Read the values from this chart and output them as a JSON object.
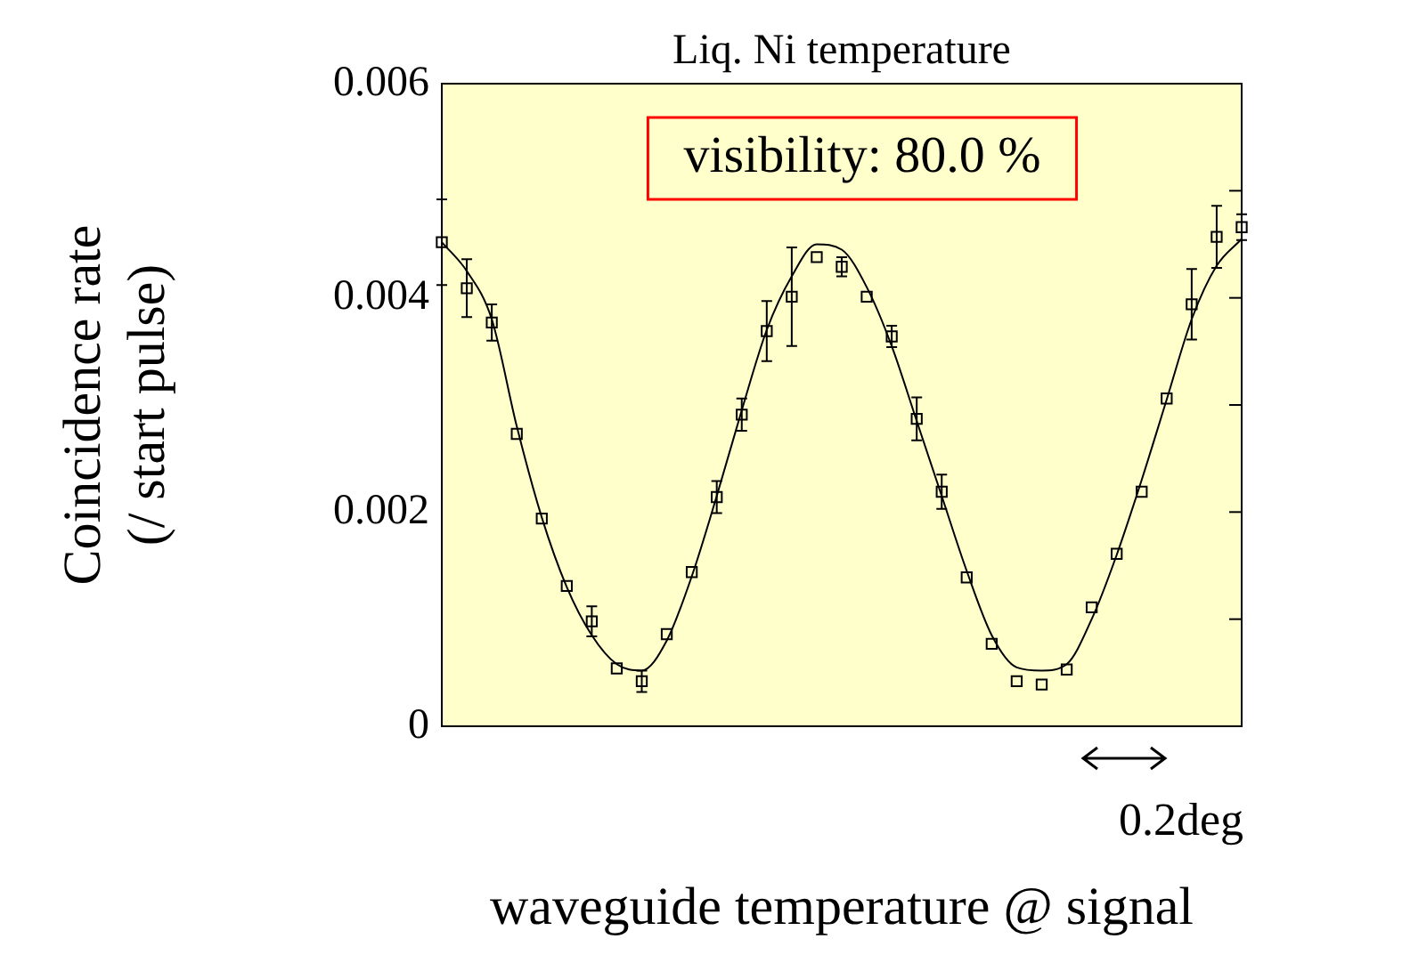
{
  "chart_data": {
    "type": "scatter",
    "title": "Liq. Ni temperature",
    "xlabel": "waveguide temperature @ signal",
    "ylabel": "Coincidence rate\n(/ start pulse)",
    "annotations": [
      "visibility: 80.0 %",
      "0.2deg"
    ],
    "categories": [
      null,
      null,
      null,
      null,
      null,
      null,
      null,
      null,
      null,
      null,
      null,
      null,
      null,
      null,
      null,
      null,
      null,
      null,
      null,
      null,
      null,
      null,
      null,
      null,
      null,
      null,
      null,
      null,
      null,
      null,
      null,
      null,
      null
    ],
    "ylim": [
      0,
      0.006
    ],
    "yticks": [
      0,
      {
        "value": 0.001,
        "label": null
      },
      0.002,
      {
        "value": 0.003,
        "label": null
      },
      0.004,
      {
        "value": 0.005,
        "label": null
      },
      0.006
    ],
    "legend": false,
    "series": [
      {
        "color": "#000000",
        "marker": "square",
        "values": [
          0.00452,
          0.00409,
          0.00377,
          0.00273,
          0.00194,
          0.00131,
          0.00098,
          0.00054,
          0.00042,
          0.00086,
          0.00144,
          0.00214,
          0.00291,
          0.00369,
          0.00401,
          0.00438,
          0.00429,
          0.00401,
          0.00364,
          0.00287,
          0.00219,
          0.00139,
          0.00077,
          0.00042,
          0.00039,
          0.00053,
          0.00111,
          0.00161,
          0.00219,
          0.00306,
          0.00394,
          0.00457,
          0.00466
        ],
        "errors": [
          0.0004,
          0.00027,
          0.00017,
          null,
          null,
          null,
          0.00014,
          null,
          0.0001,
          null,
          null,
          0.00015,
          0.00015,
          0.00028,
          0.00046,
          null,
          9e-05,
          null,
          0.0001,
          0.0002,
          0.00016,
          null,
          null,
          null,
          null,
          null,
          null,
          null,
          null,
          null,
          0.00033,
          0.00029,
          0.00012
        ]
      },
      {
        "type": "line",
        "color": "#000000",
        "values": [
          0.00452,
          0.00425,
          0.0038,
          0.0028,
          0.00195,
          0.0013,
          0.00085,
          0.00058,
          0.00052,
          0.0008,
          0.0014,
          0.00215,
          0.00295,
          0.0037,
          0.0042,
          0.0045,
          0.00445,
          0.0041,
          0.00355,
          0.00285,
          0.00215,
          0.00145,
          0.00085,
          0.00055,
          0.00052,
          0.00058,
          0.001,
          0.0016,
          0.0023,
          0.00305,
          0.0038,
          0.0043,
          0.00455
        ]
      }
    ]
  }
}
